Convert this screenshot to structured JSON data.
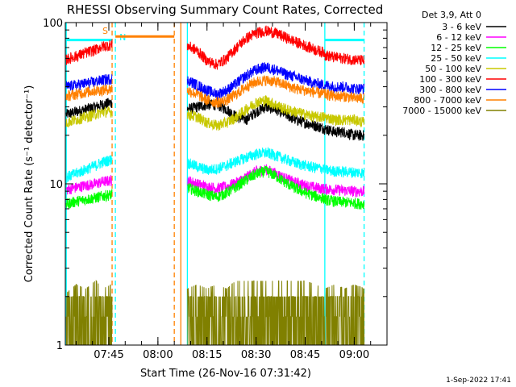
{
  "chart_data": {
    "type": "line",
    "title": "RHESSI Observing Summary Count Rates, Corrected",
    "xlabel": "Start Time (26-Nov-16 07:31:42)",
    "ylabel": "Corrected Count Rate (s⁻¹ detector⁻¹)",
    "yscale": "log",
    "ylim": [
      1,
      100
    ],
    "xlim": [
      "07:31:42",
      "09:10:00"
    ],
    "x_ticks": [
      "07:45",
      "08:00",
      "08:15",
      "08:30",
      "08:45",
      "09:00"
    ],
    "y_ticks": [
      "1",
      "10",
      "100"
    ],
    "legend_title": "Det 3,9, Att 0",
    "legend_position": "top-right",
    "series": [
      {
        "name": "3 - 6 keV",
        "color": "#000000",
        "segments": [
          {
            "x": [
              "07:32",
              "07:35",
              "07:38",
              "07:41",
              "07:43",
              "07:46"
            ],
            "y": [
              27,
              28,
              29,
              30,
              31,
              32
            ]
          },
          {
            "x": [
              "08:09",
              "08:12",
              "08:15",
              "08:18",
              "08:21",
              "08:24",
              "08:27",
              "08:30",
              "08:33",
              "08:36",
              "08:39",
              "08:42",
              "08:45",
              "08:48",
              "08:51"
            ],
            "y": [
              29,
              30,
              31,
              31,
              29,
              26,
              25,
              28,
              30,
              29,
              27,
              25,
              24,
              23,
              22
            ]
          },
          {
            "x": [
              "08:51",
              "08:54",
              "08:57",
              "09:00",
              "09:03"
            ],
            "y": [
              22,
              21,
              21,
              20,
              20
            ]
          }
        ]
      },
      {
        "name": "6 - 12 keV",
        "color": "#ff00ff",
        "segments": [
          {
            "x": [
              "07:32",
              "07:35",
              "07:38",
              "07:41",
              "07:43",
              "07:46"
            ],
            "y": [
              9.2,
              9.5,
              9.8,
              10,
              10.3,
              10.5
            ]
          },
          {
            "x": [
              "08:09",
              "08:12",
              "08:15",
              "08:18",
              "08:21",
              "08:24",
              "08:27",
              "08:30",
              "08:33",
              "08:36",
              "08:39",
              "08:42",
              "08:45",
              "08:48",
              "08:51"
            ],
            "y": [
              10.5,
              10,
              9.6,
              9.4,
              9.6,
              10.2,
              11,
              12,
              12.3,
              11.6,
              10.8,
              10.2,
              9.8,
              9.5,
              9.3
            ]
          },
          {
            "x": [
              "08:51",
              "08:54",
              "08:57",
              "09:00",
              "09:03"
            ],
            "y": [
              9.3,
              9.2,
              9.1,
              9,
              9
            ]
          }
        ]
      },
      {
        "name": "12 - 25 keV",
        "color": "#00ff00",
        "segments": [
          {
            "x": [
              "07:32",
              "07:35",
              "07:38",
              "07:41",
              "07:43",
              "07:46"
            ],
            "y": [
              7.5,
              7.8,
              8,
              8.2,
              8.4,
              8.6
            ]
          },
          {
            "x": [
              "08:09",
              "08:12",
              "08:15",
              "08:18",
              "08:21",
              "08:24",
              "08:27",
              "08:30",
              "08:33",
              "08:36",
              "08:39",
              "08:42",
              "08:45",
              "08:48",
              "08:51"
            ],
            "y": [
              9.5,
              9,
              8.6,
              8.3,
              8.8,
              9.6,
              10.6,
              11.5,
              12,
              11.2,
              10.2,
              9.4,
              8.8,
              8.4,
              8.1
            ]
          },
          {
            "x": [
              "08:51",
              "08:54",
              "08:57",
              "09:00",
              "09:03"
            ],
            "y": [
              8,
              7.8,
              7.7,
              7.6,
              7.5
            ]
          }
        ]
      },
      {
        "name": "25 - 50 keV",
        "color": "#00ffff",
        "segments": [
          {
            "x": [
              "07:32",
              "07:35",
              "07:38",
              "07:41",
              "07:43",
              "07:46"
            ],
            "y": [
              11,
              11.6,
              12.3,
              13,
              13.6,
              14.2
            ]
          },
          {
            "x": [
              "08:09",
              "08:12",
              "08:15",
              "08:18",
              "08:21",
              "08:24",
              "08:27",
              "08:30",
              "08:33",
              "08:36",
              "08:39",
              "08:42",
              "08:45",
              "08:48",
              "08:51"
            ],
            "y": [
              13.5,
              12.8,
              12.2,
              12.4,
              13,
              13.8,
              14.6,
              15.3,
              15.6,
              15,
              14.2,
              13.5,
              13,
              12.6,
              12.4
            ]
          },
          {
            "x": [
              "08:51",
              "08:54",
              "08:57",
              "09:00",
              "09:03"
            ],
            "y": [
              12.2,
              12,
              11.9,
              11.8,
              11.7
            ]
          }
        ]
      },
      {
        "name": "50 - 100 keV",
        "color": "#c8c800",
        "segments": [
          {
            "x": [
              "07:32",
              "07:35",
              "07:38",
              "07:41",
              "07:43",
              "07:46"
            ],
            "y": [
              24,
              25,
              26,
              27,
              28,
              28
            ]
          },
          {
            "x": [
              "08:09",
              "08:12",
              "08:15",
              "08:18",
              "08:21",
              "08:24",
              "08:27",
              "08:30",
              "08:33",
              "08:36",
              "08:39",
              "08:42",
              "08:45",
              "08:48",
              "08:51"
            ],
            "y": [
              27,
              26,
              24,
              23,
              24,
              26,
              29,
              32,
              33,
              31,
              29,
              28,
              27,
              26,
              26
            ]
          },
          {
            "x": [
              "08:51",
              "08:54",
              "08:57",
              "09:00",
              "09:03"
            ],
            "y": [
              26,
              25,
              25,
              25,
              24
            ]
          }
        ]
      },
      {
        "name": "100 - 300 keV",
        "color": "#ff0000",
        "segments": [
          {
            "x": [
              "07:32",
              "07:35",
              "07:38",
              "07:41",
              "07:43",
              "07:46"
            ],
            "y": [
              59,
              62,
              65,
              68,
              71,
              73
            ]
          },
          {
            "x": [
              "08:09",
              "08:12",
              "08:15",
              "08:18",
              "08:21",
              "08:24",
              "08:27",
              "08:30",
              "08:33",
              "08:36",
              "08:39",
              "08:42",
              "08:45",
              "08:48",
              "08:51"
            ],
            "y": [
              72,
              67,
              58,
              55,
              60,
              70,
              80,
              86,
              89,
              86,
              81,
              76,
              72,
              68,
              65
            ]
          },
          {
            "x": [
              "08:51",
              "08:54",
              "08:57",
              "09:00",
              "09:03"
            ],
            "y": [
              63,
              61,
              60,
              59,
              58
            ]
          }
        ]
      },
      {
        "name": "300 - 800 keV",
        "color": "#0000ff",
        "segments": [
          {
            "x": [
              "07:32",
              "07:35",
              "07:38",
              "07:41",
              "07:43",
              "07:46"
            ],
            "y": [
              40,
              41,
              42,
              43,
              44,
              45
            ]
          },
          {
            "x": [
              "08:09",
              "08:12",
              "08:15",
              "08:18",
              "08:21",
              "08:24",
              "08:27",
              "08:30",
              "08:33",
              "08:36",
              "08:39",
              "08:42",
              "08:45",
              "08:48",
              "08:51"
            ],
            "y": [
              44,
              41,
              38,
              36,
              38,
              42,
              47,
              51,
              53,
              51,
              48,
              46,
              44,
              42,
              41
            ]
          },
          {
            "x": [
              "08:51",
              "08:54",
              "08:57",
              "09:00",
              "09:03"
            ],
            "y": [
              41,
              40,
              40,
              39,
              39
            ]
          }
        ]
      },
      {
        "name": "800 - 7000 keV",
        "color": "#ff8000",
        "segments": [
          {
            "x": [
              "07:32",
              "07:35",
              "07:38",
              "07:41",
              "07:43",
              "07:46"
            ],
            "y": [
              35,
              36,
              37,
              38,
              38,
              39
            ]
          },
          {
            "x": [
              "08:09",
              "08:12",
              "08:15",
              "08:18",
              "08:21",
              "08:24",
              "08:27",
              "08:30",
              "08:33",
              "08:36",
              "08:39",
              "08:42",
              "08:45",
              "08:48",
              "08:51"
            ],
            "y": [
              38,
              36,
              33,
              32,
              33,
              36,
              40,
              43,
              44,
              43,
              41,
              39,
              38,
              37,
              36
            ]
          },
          {
            "x": [
              "08:51",
              "08:54",
              "08:57",
              "09:00",
              "09:03"
            ],
            "y": [
              36,
              35,
              35,
              34,
              34
            ]
          }
        ]
      },
      {
        "name": "7000 - 15000 keV",
        "color": "#808000",
        "segments": [
          {
            "x": [
              "07:32",
              "07:35",
              "07:38",
              "07:41",
              "07:43",
              "07:46"
            ],
            "y": [
              1.5,
              1.7,
              1.6,
              1.8,
              1.6,
              1.7
            ]
          },
          {
            "x": [
              "08:09",
              "08:12",
              "08:15",
              "08:18",
              "08:21",
              "08:24",
              "08:27",
              "08:30",
              "08:33",
              "08:36",
              "08:39",
              "08:42",
              "08:45",
              "08:48",
              "08:51"
            ],
            "y": [
              1.6,
              1.7,
              1.6,
              1.7,
              1.6,
              1.8,
              2.0,
              2.3,
              2.6,
              2.6,
              2.4,
              2.1,
              1.8,
              1.7,
              1.6
            ]
          },
          {
            "x": [
              "08:51",
              "08:54",
              "08:57",
              "09:00",
              "09:03"
            ],
            "y": [
              1.6,
              1.7,
              1.6,
              1.7,
              1.6
            ]
          }
        ]
      }
    ],
    "annotations": [
      {
        "label": "S",
        "x": "07:46",
        "color": "#ff8000",
        "style": "dashed"
      },
      {
        "label": "N",
        "x": "07:47",
        "color": "#00ffff",
        "style": "dashed"
      },
      {
        "label": "",
        "x": "07:32",
        "color": "#00ffff",
        "style": "solid"
      },
      {
        "label": "",
        "x": "08:09",
        "color": "#00ffff",
        "style": "solid"
      },
      {
        "label": "",
        "x": "08:51",
        "color": "#00ffff",
        "style": "solid"
      },
      {
        "label": "",
        "x": "09:03",
        "color": "#00ffff",
        "style": "dashed"
      },
      {
        "label": "",
        "x": "08:05",
        "color": "#ff8000",
        "style": "dashed"
      },
      {
        "label": "",
        "x": "08:07",
        "color": "#ff8000",
        "style": "solid"
      }
    ],
    "state_bars": [
      {
        "color": "#ff8000",
        "x0": "07:47",
        "x1": "08:05",
        "level": 82
      },
      {
        "color": "#00ffff",
        "x0": "07:32",
        "x1": "07:46",
        "level": 78
      },
      {
        "color": "#00ffff",
        "x0": "08:51",
        "x1": "09:03",
        "level": 78
      }
    ],
    "grid": false
  },
  "footer": {
    "timestamp": "1-Sep-2022 17:41"
  }
}
